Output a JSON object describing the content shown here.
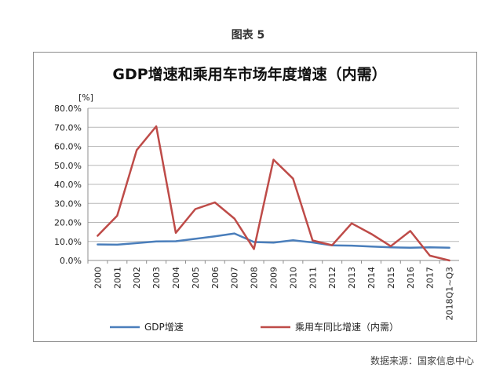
{
  "figure_label": "图表 5",
  "source": "数据来源：国家信息中心",
  "chart_data": {
    "type": "line",
    "title": "GDP增速和乘用车市场年度增速（内需）",
    "unit_label": "[%]",
    "categories": [
      "2000",
      "2001",
      "2002",
      "2003",
      "2004",
      "2005",
      "2006",
      "2007",
      "2008",
      "2009",
      "2010",
      "2011",
      "2012",
      "2013",
      "2014",
      "2015",
      "2016",
      "2017",
      "2018Q1~Q3"
    ],
    "yticks": [
      "0.0%",
      "10.0%",
      "20.0%",
      "30.0%",
      "40.0%",
      "50.0%",
      "60.0%",
      "70.0%",
      "80.0%"
    ],
    "ylim": [
      0,
      80
    ],
    "grid": true,
    "legend_position": "bottom",
    "series": [
      {
        "name": "GDP增速",
        "color": "#4a7ebb",
        "values": [
          8.4,
          8.3,
          9.1,
          10.0,
          10.1,
          11.4,
          12.7,
          14.2,
          9.7,
          9.4,
          10.6,
          9.5,
          7.9,
          7.8,
          7.3,
          6.9,
          6.7,
          6.9,
          6.7
        ]
      },
      {
        "name": "乘用车同比增速（内需）",
        "color": "#be4b48",
        "values": [
          13.0,
          23.5,
          58.0,
          70.5,
          14.5,
          27.0,
          30.5,
          22.0,
          6.0,
          53.0,
          43.0,
          10.5,
          8.0,
          19.5,
          14.0,
          7.5,
          15.5,
          2.5,
          0.0
        ]
      }
    ]
  }
}
